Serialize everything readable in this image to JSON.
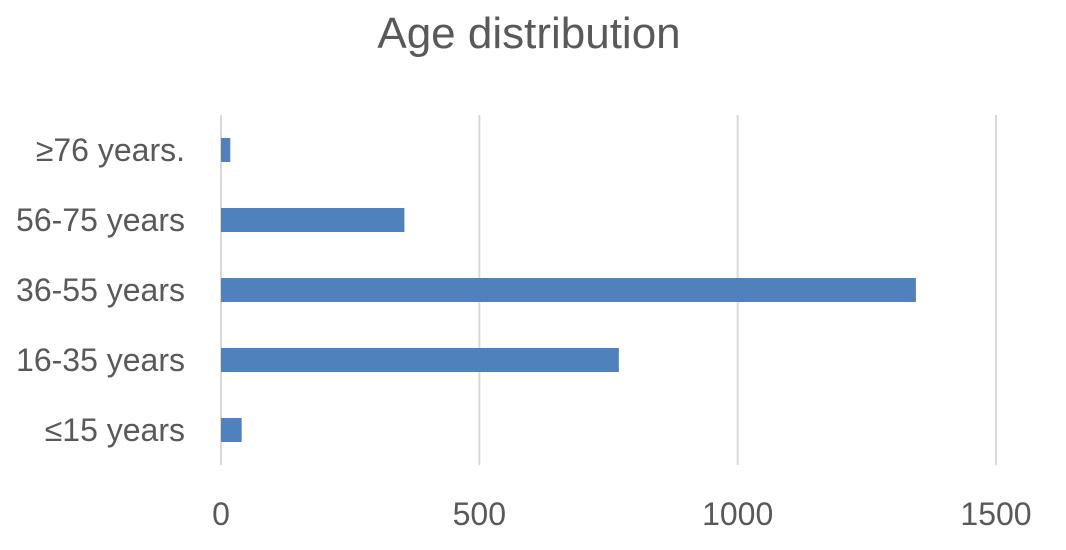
{
  "chart_data": {
    "type": "bar",
    "orientation": "horizontal",
    "title": "Age distribution",
    "xlabel": "",
    "ylabel": "",
    "categories": [
      "≤15 years",
      "16-35 years",
      "36-55 years",
      "56-75 years",
      "≥76 years."
    ],
    "values": [
      40,
      770,
      1345,
      355,
      18
    ],
    "xlim": [
      0,
      1500
    ],
    "ticks": [
      0,
      500,
      1000,
      1500
    ],
    "tick_labels": [
      "0",
      "500",
      "1000",
      "1500"
    ],
    "grid": true,
    "legend": "none",
    "bar_color": "#4f81bd"
  }
}
